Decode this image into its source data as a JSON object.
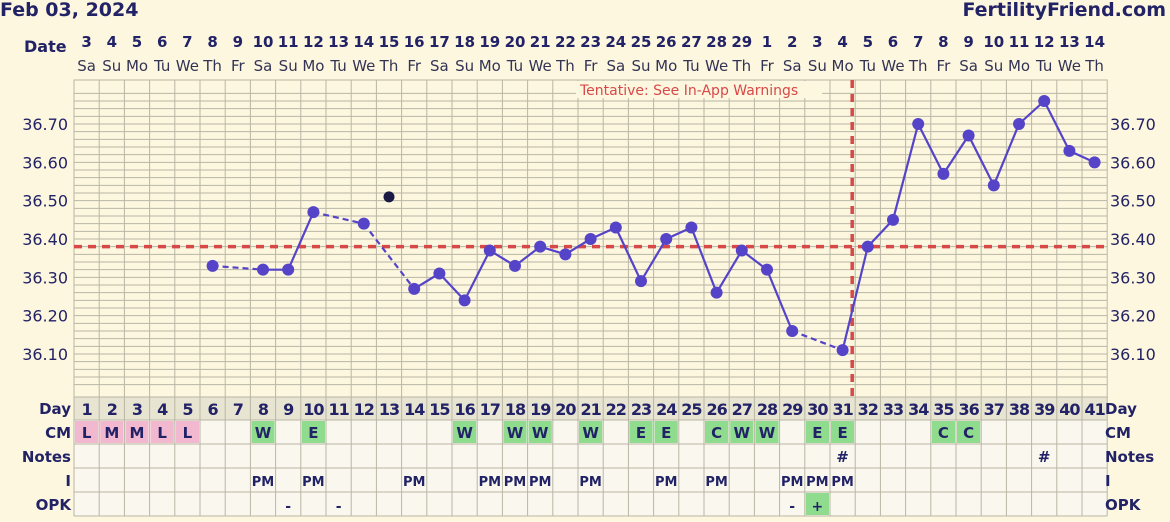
{
  "header": {
    "date": "Feb 03, 2024",
    "brand": "FertilityFriend.com"
  },
  "labels": {
    "date": "Date",
    "day": "Day",
    "cm": "CM",
    "notes": "Notes",
    "i": "I",
    "opk": "OPK"
  },
  "tentative_note": "Tentative: See In-App Warnings",
  "colors": {
    "background": "#fdf7df",
    "grid": "#b9b6a5",
    "line": "#5544c8",
    "marker": "#5544c8",
    "coverline": "#d84848",
    "cm_pink": "#f2b8cf",
    "cm_green": "#8fdc8f",
    "text": "#222266"
  },
  "chart_data": {
    "type": "line",
    "y_ticks": [
      "36.10",
      "36.20",
      "36.30",
      "36.40",
      "36.50",
      "36.60",
      "36.70"
    ],
    "ylim": [
      36.01,
      36.8
    ],
    "coverline": 36.38,
    "ovulation_day": 31,
    "grid": true,
    "dates": [
      "3",
      "4",
      "5",
      "6",
      "7",
      "8",
      "9",
      "10",
      "11",
      "12",
      "13",
      "14",
      "15",
      "16",
      "17",
      "18",
      "19",
      "20",
      "21",
      "22",
      "23",
      "24",
      "25",
      "26",
      "27",
      "28",
      "29",
      "1",
      "2",
      "3",
      "4",
      "5",
      "6",
      "7",
      "8",
      "9",
      "10",
      "11",
      "12",
      "13",
      "14"
    ],
    "weekdays": [
      "Sa",
      "Su",
      "Mo",
      "Tu",
      "We",
      "Th",
      "Fr",
      "Sa",
      "Su",
      "Mo",
      "Tu",
      "We",
      "Th",
      "Fr",
      "Sa",
      "Su",
      "Mo",
      "Tu",
      "We",
      "Th",
      "Fr",
      "Sa",
      "Su",
      "Mo",
      "Tu",
      "We",
      "Th",
      "Fr",
      "Sa",
      "Su",
      "Mo",
      "Tu",
      "We",
      "Th",
      "Fr",
      "Sa",
      "Su",
      "Mo",
      "Tu",
      "We",
      "Th"
    ],
    "days": [
      1,
      2,
      3,
      4,
      5,
      6,
      7,
      8,
      9,
      10,
      11,
      12,
      13,
      14,
      15,
      16,
      17,
      18,
      19,
      20,
      21,
      22,
      23,
      24,
      25,
      26,
      27,
      28,
      29,
      30,
      31,
      32,
      33,
      34,
      35,
      36,
      37,
      38,
      39,
      40,
      41
    ],
    "temps": [
      {
        "day": 6,
        "t": 36.33
      },
      {
        "day": 8,
        "t": 36.32
      },
      {
        "day": 9,
        "t": 36.32
      },
      {
        "day": 10,
        "t": 36.47
      },
      {
        "day": 12,
        "t": 36.44
      },
      {
        "day": 14,
        "t": 36.27
      },
      {
        "day": 15,
        "t": 36.31
      },
      {
        "day": 16,
        "t": 36.24
      },
      {
        "day": 17,
        "t": 36.37
      },
      {
        "day": 18,
        "t": 36.33
      },
      {
        "day": 19,
        "t": 36.38
      },
      {
        "day": 20,
        "t": 36.36
      },
      {
        "day": 21,
        "t": 36.4
      },
      {
        "day": 22,
        "t": 36.43
      },
      {
        "day": 23,
        "t": 36.29
      },
      {
        "day": 24,
        "t": 36.4
      },
      {
        "day": 25,
        "t": 36.43
      },
      {
        "day": 26,
        "t": 36.26
      },
      {
        "day": 27,
        "t": 36.37
      },
      {
        "day": 28,
        "t": 36.32
      },
      {
        "day": 29,
        "t": 36.16
      },
      {
        "day": 31,
        "t": 36.11
      },
      {
        "day": 32,
        "t": 36.38
      },
      {
        "day": 33,
        "t": 36.45
      },
      {
        "day": 34,
        "t": 36.7
      },
      {
        "day": 35,
        "t": 36.57
      },
      {
        "day": 36,
        "t": 36.67
      },
      {
        "day": 37,
        "t": 36.54
      },
      {
        "day": 38,
        "t": 36.7
      },
      {
        "day": 39,
        "t": 36.76
      },
      {
        "day": 40,
        "t": 36.63
      },
      {
        "day": 41,
        "t": 36.6
      }
    ],
    "dashed_after_days": [
      6,
      10,
      12,
      29
    ],
    "discarded": [
      {
        "day": 13,
        "t": 36.51
      }
    ],
    "cm": {
      "1": "L",
      "2": "M",
      "3": "M",
      "4": "L",
      "5": "L",
      "8": "W",
      "10": "E",
      "16": "W",
      "18": "W",
      "19": "W",
      "21": "W",
      "23": "E",
      "24": "E",
      "26": "C",
      "27": "W",
      "28": "W",
      "30": "E",
      "31": "E",
      "35": "C",
      "36": "C"
    },
    "notes": {
      "31": "#",
      "39": "#"
    },
    "intercourse": {
      "8": "PM",
      "10": "PM",
      "14": "PM",
      "17": "PM",
      "18": "PM",
      "19": "PM",
      "21": "PM",
      "24": "PM",
      "26": "PM",
      "29": "PM",
      "30": "PM",
      "31": "PM"
    },
    "opk": {
      "9": "-",
      "11": "-",
      "29": "-",
      "30": "+"
    }
  }
}
